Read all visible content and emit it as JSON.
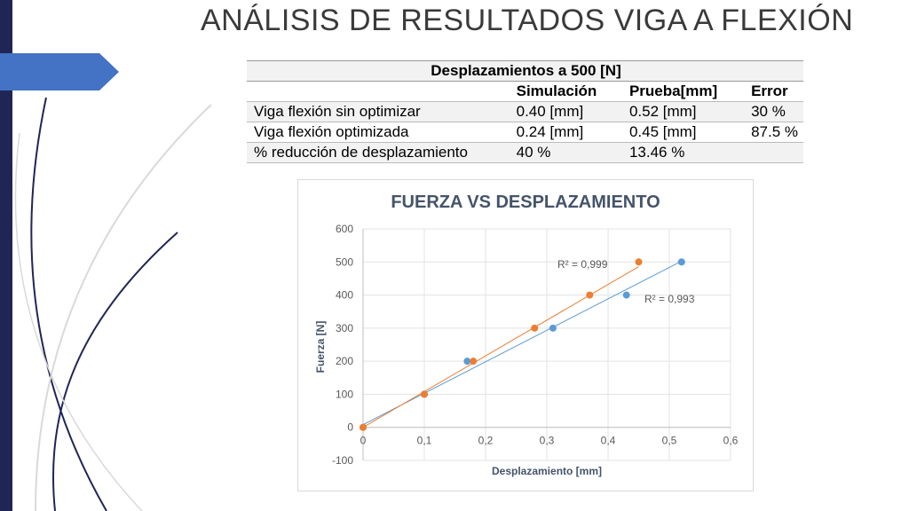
{
  "slide": {
    "title": "ANÁLISIS DE RESULTADOS VIGA A FLEXIÓN",
    "accent_color": "#1f2656",
    "arrow_color": "#4472c4"
  },
  "table": {
    "header": "Desplazamientos a 500 [N]",
    "columns": [
      "",
      "Simulación",
      "Prueba[mm]",
      "Error"
    ],
    "rows": [
      [
        "Viga flexión sin optimizar",
        "0.40 [mm]",
        "0.52 [mm]",
        "30 %"
      ],
      [
        "Viga flexión  optimizada",
        "0.24 [mm]",
        "0.45 [mm]",
        "87.5 %"
      ],
      [
        "% reducción de desplazamiento",
        "40 %",
        "13.46 %",
        ""
      ]
    ]
  },
  "chart_data": {
    "type": "scatter",
    "title": "FUERZA VS DESPLAZAMIENTO",
    "xlabel": "Desplazamiento [mm]",
    "ylabel": "Fuerza [N]",
    "xlim": [
      0,
      0.6
    ],
    "ylim": [
      -100,
      600
    ],
    "xticks": [
      "0",
      "0,1",
      "0,2",
      "0,3",
      "0,4",
      "0,5",
      "0,6"
    ],
    "yticks": [
      "-100",
      "0",
      "100",
      "200",
      "300",
      "400",
      "500",
      "600"
    ],
    "grid": true,
    "legend": "none",
    "series": [
      {
        "color": "#5b9bd5",
        "x": [
          0,
          0.1,
          0.17,
          0.31,
          0.43,
          0.52
        ],
        "y": [
          0,
          100,
          200,
          300,
          400,
          500
        ],
        "trendline": {
          "slope": 951,
          "intercept": 8
        },
        "annotation": "R² = 0,993"
      },
      {
        "color": "#ed7d31",
        "x": [
          0,
          0.1,
          0.18,
          0.28,
          0.37,
          0.45
        ],
        "y": [
          0,
          100,
          200,
          300,
          400,
          500
        ],
        "trendline": {
          "slope": 1080,
          "intercept": 0
        },
        "annotation": "R² = 0,999"
      }
    ]
  }
}
